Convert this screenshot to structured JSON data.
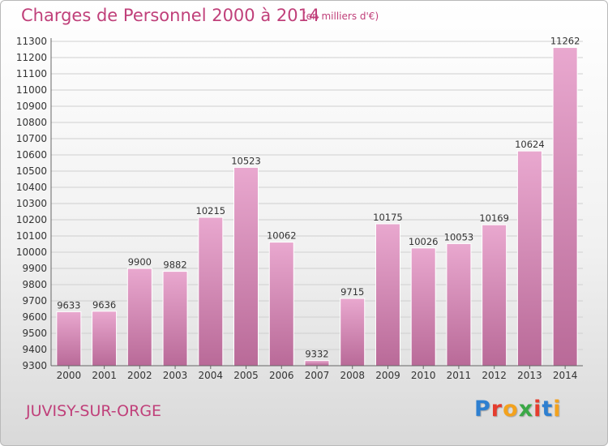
{
  "header": {
    "title": "Charges de Personnel 2000 à 2014",
    "unit_note": "(en milliers d'€)"
  },
  "footer": {
    "city": "JUVISY-SUR-ORGE",
    "logo": "Proxiti",
    "logo_colors": [
      "#2e7fd0",
      "#e53c2e",
      "#f3a21d",
      "#3aa846",
      "#e53c2e",
      "#2e7fd0",
      "#f3a21d"
    ]
  },
  "colors": {
    "accent": "#c0407a",
    "bar_top": "#e9a8cf",
    "bar_bottom": "#b96a98"
  },
  "chart_data": {
    "type": "bar",
    "categories": [
      "2000",
      "2001",
      "2002",
      "2003",
      "2004",
      "2005",
      "2006",
      "2007",
      "2008",
      "2009",
      "2010",
      "2011",
      "2012",
      "2013",
      "2014"
    ],
    "values": [
      9633,
      9636,
      9900,
      9882,
      10215,
      10523,
      10062,
      9332,
      9715,
      10175,
      10026,
      10053,
      10169,
      10624,
      11262
    ],
    "title": "Charges de Personnel 2000 à 2014",
    "ylim": [
      9300,
      11300
    ],
    "ytick_step": 100,
    "grid": true,
    "data_labels": true
  }
}
